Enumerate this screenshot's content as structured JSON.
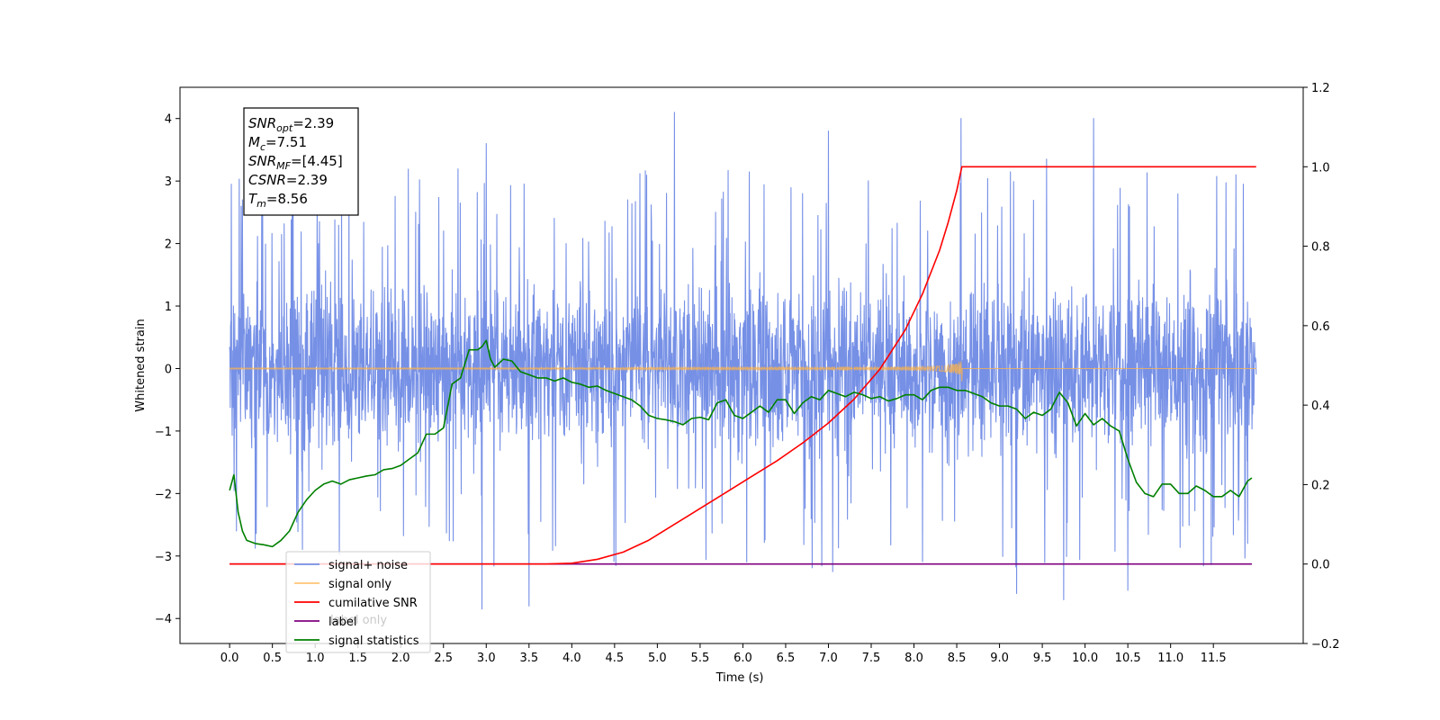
{
  "chart_data": {
    "type": "line",
    "xlabel": "Time (s)",
    "ylabel": "Whitened strain",
    "xlim": [
      -0.58,
      12.55
    ],
    "ylim": [
      -4.4,
      4.5
    ],
    "y2lim": [
      -0.2,
      1.2
    ],
    "x_ticks": [
      0.0,
      0.5,
      1.0,
      1.5,
      2.0,
      2.5,
      3.0,
      3.5,
      4.0,
      4.5,
      5.0,
      5.5,
      6.0,
      6.5,
      7.0,
      7.5,
      8.0,
      8.5,
      9.0,
      9.5,
      10.0,
      10.5,
      11.0,
      11.5
    ],
    "x_tick_labels": [
      "0.0",
      "0.5",
      "1.0",
      "1.5",
      "2.0",
      "2.5",
      "3.0",
      "3.5",
      "4.0",
      "4.5",
      "5.0",
      "5.5",
      "6.0",
      "6.5",
      "7.0",
      "7.5",
      "8.0",
      "8.5",
      "9.0",
      "9.5",
      "10.0",
      "10.5",
      "11.0",
      "11.5"
    ],
    "y_ticks": [
      -4,
      -3,
      -2,
      -1,
      0,
      1,
      2,
      3,
      4
    ],
    "y_tick_labels": [
      "−4",
      "−3",
      "−2",
      "−1",
      "0",
      "1",
      "2",
      "3",
      "4"
    ],
    "y2_ticks": [
      -0.2,
      0.0,
      0.2,
      0.4,
      0.6,
      0.8,
      1.0,
      1.2
    ],
    "y2_tick_labels": [
      "−0.2",
      "0.0",
      "0.2",
      "0.4",
      "0.6",
      "0.8",
      "1.0",
      "1.2"
    ],
    "grid": false,
    "legend_position": "lower-left",
    "series": [
      {
        "name": "signal+ noise",
        "color": "#7690e6",
        "axis": "left",
        "description_kind": "noise band",
        "x_range": [
          0.0,
          12.0
        ],
        "band_low": -1.5,
        "band_high": 1.5,
        "peak_max": 4.1,
        "peak_min": -3.85
      },
      {
        "name": "signal only",
        "color": "#ffb347",
        "axis": "left",
        "x_range": [
          0.0,
          12.0
        ],
        "chirp_peak_x": 8.56,
        "chirp_peak_amplitude": 0.33
      },
      {
        "name": "cumilative SNR",
        "color": "#ff0000",
        "axis": "right",
        "x": [
          0.0,
          3.7,
          4.0,
          4.3,
          4.6,
          4.9,
          5.2,
          5.5,
          5.8,
          6.1,
          6.4,
          6.7,
          7.0,
          7.3,
          7.6,
          7.9,
          8.1,
          8.3,
          8.4,
          8.5,
          8.56,
          12.0
        ],
        "y": [
          0.0,
          0.0,
          0.002,
          0.012,
          0.03,
          0.06,
          0.1,
          0.14,
          0.18,
          0.22,
          0.26,
          0.305,
          0.355,
          0.415,
          0.49,
          0.59,
          0.68,
          0.79,
          0.86,
          0.94,
          1.0,
          1.0
        ]
      },
      {
        "name": "label",
        "color": "#800080",
        "axis": "right",
        "x": [
          0.0,
          11.95
        ],
        "y": [
          0.0,
          0.0
        ]
      },
      {
        "name": "signal statistics",
        "color": "#008000",
        "axis": "left",
        "x": [
          0.0,
          0.05,
          0.1,
          0.15,
          0.2,
          0.3,
          0.4,
          0.5,
          0.6,
          0.7,
          0.8,
          0.9,
          1.0,
          1.1,
          1.2,
          1.3,
          1.4,
          1.5,
          1.6,
          1.7,
          1.8,
          1.9,
          2.0,
          2.1,
          2.2,
          2.3,
          2.4,
          2.5,
          2.6,
          2.65,
          2.7,
          2.8,
          2.9,
          2.95,
          3.0,
          3.05,
          3.1,
          3.2,
          3.3,
          3.4,
          3.5,
          3.6,
          3.7,
          3.8,
          3.9,
          4.0,
          4.1,
          4.2,
          4.3,
          4.4,
          4.5,
          4.6,
          4.7,
          4.8,
          4.9,
          5.0,
          5.1,
          5.2,
          5.3,
          5.4,
          5.5,
          5.6,
          5.7,
          5.8,
          5.9,
          6.0,
          6.1,
          6.2,
          6.3,
          6.4,
          6.5,
          6.6,
          6.7,
          6.8,
          6.9,
          7.0,
          7.1,
          7.2,
          7.3,
          7.4,
          7.5,
          7.6,
          7.7,
          7.8,
          7.9,
          8.0,
          8.1,
          8.2,
          8.3,
          8.4,
          8.5,
          8.6,
          8.7,
          8.8,
          8.9,
          9.0,
          9.1,
          9.2,
          9.3,
          9.4,
          9.5,
          9.6,
          9.7,
          9.8,
          9.9,
          10.0,
          10.1,
          10.2,
          10.3,
          10.4,
          10.5,
          10.6,
          10.7,
          10.8,
          10.9,
          11.0,
          11.1,
          11.2,
          11.3,
          11.4,
          11.5,
          11.6,
          11.7,
          11.8,
          11.9,
          11.95
        ],
        "y": [
          -1.95,
          -1.7,
          -2.3,
          -2.6,
          -2.75,
          -2.8,
          -2.82,
          -2.85,
          -2.75,
          -2.6,
          -2.3,
          -2.1,
          -1.95,
          -1.85,
          -1.8,
          -1.85,
          -1.78,
          -1.75,
          -1.72,
          -1.7,
          -1.62,
          -1.6,
          -1.55,
          -1.45,
          -1.35,
          -1.05,
          -1.05,
          -0.95,
          -0.25,
          -0.2,
          -0.15,
          0.3,
          0.3,
          0.35,
          0.45,
          0.15,
          0.02,
          0.15,
          0.12,
          -0.05,
          -0.1,
          -0.15,
          -0.15,
          -0.2,
          -0.15,
          -0.22,
          -0.25,
          -0.3,
          -0.28,
          -0.35,
          -0.4,
          -0.45,
          -0.5,
          -0.6,
          -0.75,
          -0.8,
          -0.82,
          -0.85,
          -0.9,
          -0.8,
          -0.78,
          -0.82,
          -0.55,
          -0.5,
          -0.75,
          -0.8,
          -0.7,
          -0.6,
          -0.7,
          -0.5,
          -0.5,
          -0.72,
          -0.55,
          -0.45,
          -0.5,
          -0.35,
          -0.4,
          -0.45,
          -0.38,
          -0.42,
          -0.48,
          -0.45,
          -0.52,
          -0.48,
          -0.42,
          -0.42,
          -0.5,
          -0.35,
          -0.3,
          -0.3,
          -0.35,
          -0.35,
          -0.4,
          -0.45,
          -0.55,
          -0.6,
          -0.6,
          -0.65,
          -0.8,
          -0.7,
          -0.75,
          -0.65,
          -0.38,
          -0.55,
          -0.92,
          -0.72,
          -0.9,
          -0.8,
          -0.92,
          -1.0,
          -1.45,
          -1.82,
          -2.0,
          -2.05,
          -1.85,
          -1.85,
          -2.0,
          -2.0,
          -1.88,
          -1.95,
          -2.05,
          -2.05,
          -1.95,
          -2.05,
          -1.8,
          -1.75
        ]
      }
    ],
    "info_box": {
      "lines": [
        {
          "symbol": "SNR",
          "subscript": "opt",
          "rest": "=2.39"
        },
        {
          "symbol": "M",
          "subscript": "c",
          "rest": "=7.51"
        },
        {
          "symbol": "SNR",
          "subscript": "MF",
          "rest": "=[4.45]"
        },
        {
          "symbol": "CSNR",
          "subscript": "",
          "rest": "=2.39"
        },
        {
          "symbol": "T",
          "subscript": "m",
          "rest": "=8.56"
        }
      ]
    },
    "legend": {
      "entries": [
        "signal+ noise",
        "signal only",
        "cumilative SNR",
        "label",
        "signal statistics"
      ],
      "overlapped_text": "label only"
    }
  }
}
